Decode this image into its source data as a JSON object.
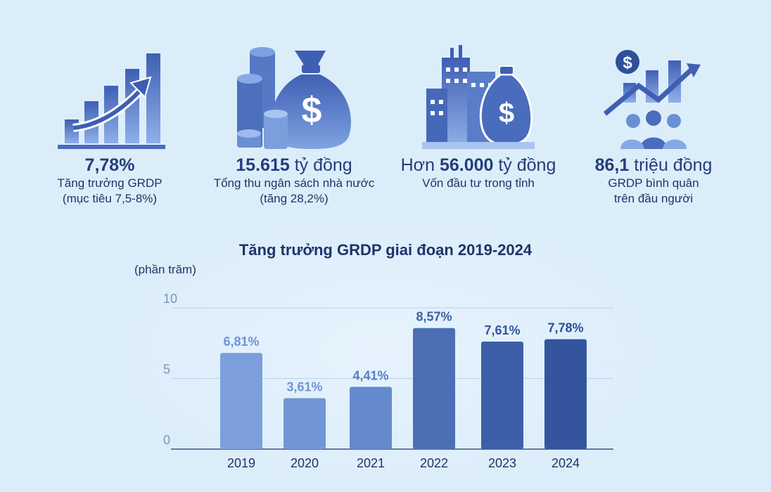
{
  "stats": [
    {
      "icon": "growth-bar-chart-icon",
      "value": "7,78%",
      "unit": "",
      "prefix": "",
      "desc1": "Tăng trưởng GRDP",
      "desc2": "(mục tiêu 7,5-8%)"
    },
    {
      "icon": "money-bag-coins-icon",
      "value": "15.615",
      "unit": " tỷ đồng",
      "prefix": "",
      "desc1": "Tổng thu ngân sách nhà nước",
      "desc2": "(tăng 28,2%)"
    },
    {
      "icon": "city-investment-icon",
      "value": "56.000",
      "unit": " tỷ đồng",
      "prefix": "Hơn ",
      "desc1": "Vốn đầu tư trong tỉnh",
      "desc2": ""
    },
    {
      "icon": "income-per-capita-icon",
      "value": "86,1",
      "unit": " triệu đồng",
      "prefix": "",
      "desc1": "GRDP bình quân",
      "desc2": "trên đầu người"
    }
  ],
  "chart_data": {
    "type": "bar",
    "title": "Tăng trưởng GRDP giai đoạn 2019-2024",
    "ylabel": "(phần trăm)",
    "xlabel": "",
    "categories": [
      "2019",
      "2020",
      "2021",
      "2022",
      "2023",
      "2024"
    ],
    "values": [
      6.81,
      3.61,
      4.41,
      8.57,
      7.61,
      7.78
    ],
    "data_labels": [
      "6,81%",
      "3,61%",
      "4,41%",
      "8,57%",
      "7,61%",
      "7,78%"
    ],
    "yticks": [
      0,
      5,
      10
    ],
    "ylim": [
      0,
      10
    ],
    "grid": true,
    "bar_colors": [
      "#7c9fdc",
      "#7295d6",
      "#6589cd",
      "#4b6eb5",
      "#3d5fa7",
      "#34559e"
    ],
    "label_colors": [
      "#6f93d6",
      "#6f93d6",
      "#5a7ec6",
      "#3d5fa7",
      "#34559e",
      "#2c4c93"
    ]
  }
}
